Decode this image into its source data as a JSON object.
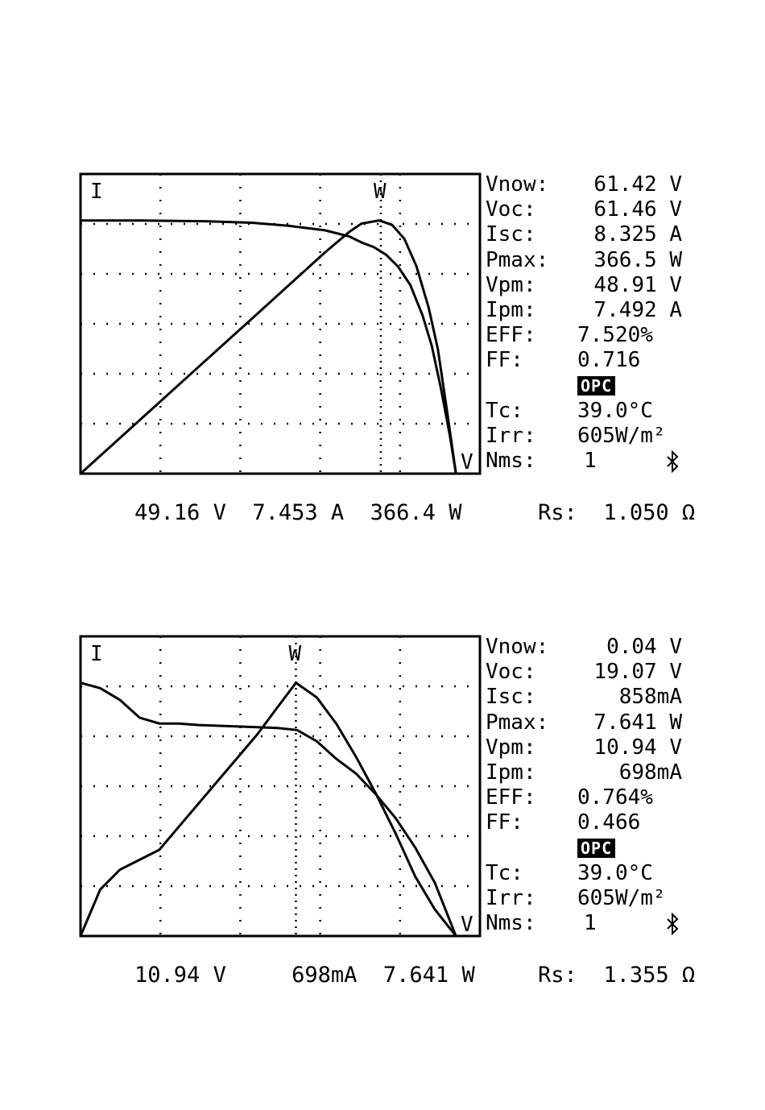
{
  "panels": [
    {
      "stats": {
        "vnow_label": "Vnow:",
        "vnow": "61.42 V",
        "voc_label": "Voc:",
        "voc": "61.46 V",
        "isc_label": "Isc:",
        "isc": "8.325 A",
        "pmax_label": "Pmax:",
        "pmax": "366.5 W",
        "vpm_label": "Vpm:",
        "vpm": "48.91 V",
        "ipm_label": "Ipm:",
        "ipm": "7.492 A",
        "eff_label": "EFF:",
        "eff": "7.520%",
        "ff_label": "FF:",
        "ff": "0.716",
        "badge": "OPC",
        "tc_label": "Tc:",
        "tc": "39.0°C",
        "irr_label": "Irr:",
        "irr": "605W/m²",
        "nms_label": "Nms:",
        "nms": "1",
        "rs_label": "Rs:",
        "rs": "1.050 Ω"
      },
      "readout": {
        "v": "49.16 V",
        "i": "7.453 A",
        "w": "366.4 W"
      }
    },
    {
      "stats": {
        "vnow_label": "Vnow:",
        "vnow": "0.04 V",
        "voc_label": "Voc:",
        "voc": "19.07 V",
        "isc_label": "Isc:",
        "isc": "858mA",
        "pmax_label": "Pmax:",
        "pmax": "7.641 W",
        "vpm_label": "Vpm:",
        "vpm": "10.94 V",
        "ipm_label": "Ipm:",
        "ipm": "698mA",
        "eff_label": "EFF:",
        "eff": "0.764%",
        "ff_label": "FF:",
        "ff": "0.466",
        "badge": "OPC",
        "tc_label": "Tc:",
        "tc": "39.0°C",
        "irr_label": "Irr:",
        "irr": "605W/m²",
        "nms_label": "Nms:",
        "nms": "1",
        "rs_label": "Rs:",
        "rs": "1.355 Ω"
      },
      "readout": {
        "v": "10.94 V",
        "i": "698mA",
        "w": "7.641 W"
      }
    }
  ],
  "chart_data": [
    {
      "type": "line",
      "axis_markers": {
        "i": "I",
        "w": "W",
        "v": "V"
      },
      "x_divisions": 5,
      "y_divisions": 6,
      "grid": true,
      "xlim": [
        0,
        61.46
      ],
      "series": [
        {
          "name": "I",
          "x": [
            0,
            10,
            20,
            28,
            34,
            40,
            44,
            46,
            48,
            50,
            52,
            54,
            56,
            57.5,
            59,
            60.5,
            61.46
          ],
          "y": [
            8.325,
            8.32,
            8.3,
            8.25,
            8.15,
            8.0,
            7.8,
            7.6,
            7.45,
            7.2,
            6.8,
            6.2,
            5.2,
            4.2,
            2.8,
            1.2,
            0
          ]
        },
        {
          "name": "W",
          "x": [
            0,
            10,
            20,
            30,
            40,
            44,
            46,
            48.91,
            51,
            53,
            55,
            57,
            58.5,
            60,
            61.46
          ],
          "y": [
            0,
            80,
            160,
            240,
            320,
            350,
            362,
            366.5,
            360,
            340,
            300,
            240,
            180,
            90,
            0
          ]
        }
      ],
      "cursor_x": 49.16
    },
    {
      "type": "line",
      "axis_markers": {
        "i": "I",
        "w": "W",
        "v": "V"
      },
      "x_divisions": 5,
      "y_divisions": 6,
      "grid": true,
      "xlim": [
        0,
        19.07
      ],
      "series": [
        {
          "name": "I",
          "x": [
            0,
            1,
            2,
            3,
            4,
            5,
            6,
            8,
            10,
            11,
            12,
            13,
            14,
            15,
            16,
            17,
            18,
            19.07
          ],
          "y": [
            0.858,
            0.84,
            0.8,
            0.74,
            0.72,
            0.72,
            0.715,
            0.71,
            0.705,
            0.698,
            0.66,
            0.6,
            0.55,
            0.48,
            0.4,
            0.3,
            0.18,
            0
          ]
        },
        {
          "name": "W",
          "x": [
            0,
            1,
            2,
            3,
            4,
            5,
            6,
            7,
            8,
            9,
            10,
            10.94,
            12,
            13,
            14,
            15,
            16,
            17,
            18,
            19.07
          ],
          "y": [
            0,
            1.4,
            2.0,
            2.3,
            2.6,
            3.3,
            4.0,
            4.7,
            5.4,
            6.1,
            6.9,
            7.641,
            7.2,
            6.4,
            5.4,
            4.3,
            3.1,
            1.8,
            0.8,
            0
          ]
        }
      ],
      "cursor_x": 10.94
    }
  ]
}
